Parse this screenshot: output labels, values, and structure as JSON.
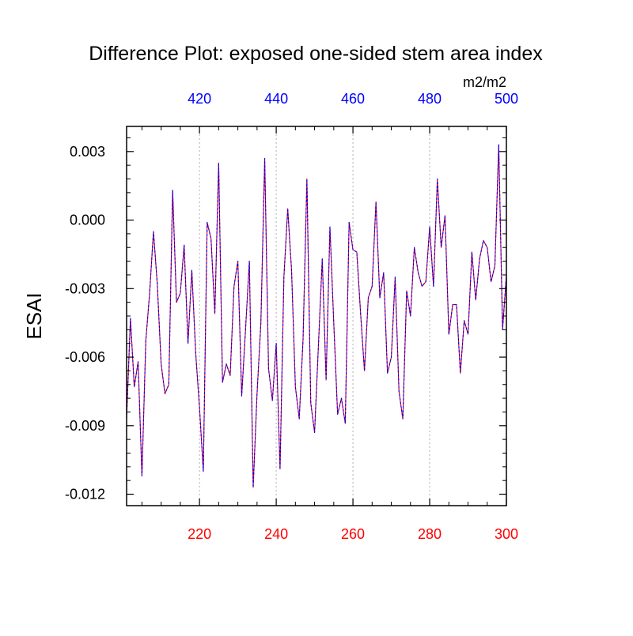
{
  "chart_data": {
    "type": "line",
    "title": "Difference Plot: exposed one-sided stem area index",
    "ylabel": "ESAI",
    "units_label": "m2/m2",
    "ylim": [
      -0.0125,
      0.0041
    ],
    "yticks": [
      {
        "value": 0.003,
        "label": "0.003"
      },
      {
        "value": 0.0,
        "label": "0.000"
      },
      {
        "value": -0.003,
        "label": "-0.003"
      },
      {
        "value": -0.006,
        "label": "-0.006"
      },
      {
        "value": -0.009,
        "label": "-0.009"
      },
      {
        "value": -0.012,
        "label": "-0.012"
      }
    ],
    "bottom_axis": {
      "xlim": [
        201,
        300
      ],
      "ticks": [
        {
          "value": 220,
          "label": "220"
        },
        {
          "value": 240,
          "label": "240"
        },
        {
          "value": 260,
          "label": "260"
        },
        {
          "value": 280,
          "label": "280"
        },
        {
          "value": 300,
          "label": "300"
        }
      ],
      "color": "#ff0000"
    },
    "top_axis": {
      "xlim": [
        401,
        500
      ],
      "ticks": [
        {
          "value": 420,
          "label": "420"
        },
        {
          "value": 440,
          "label": "440"
        },
        {
          "value": 460,
          "label": "460"
        },
        {
          "value": 480,
          "label": "480"
        },
        {
          "value": 500,
          "label": "500"
        }
      ],
      "color": "#0000ff"
    },
    "grid": "vertical-dashed",
    "x": [
      201,
      202,
      203,
      204,
      205,
      206,
      207,
      208,
      209,
      210,
      211,
      212,
      213,
      214,
      215,
      216,
      217,
      218,
      219,
      220,
      221,
      222,
      223,
      224,
      225,
      226,
      227,
      228,
      229,
      230,
      231,
      232,
      233,
      234,
      235,
      236,
      237,
      238,
      239,
      240,
      241,
      242,
      243,
      244,
      245,
      246,
      247,
      248,
      249,
      250,
      251,
      252,
      253,
      254,
      255,
      256,
      257,
      258,
      259,
      260,
      261,
      262,
      263,
      264,
      265,
      266,
      267,
      268,
      269,
      270,
      271,
      272,
      273,
      274,
      275,
      276,
      277,
      278,
      279,
      280,
      281,
      282,
      283,
      284,
      285,
      286,
      287,
      288,
      289,
      290,
      291,
      292,
      293,
      294,
      295,
      296,
      297,
      298,
      299,
      300
    ],
    "series": [
      {
        "name": "red",
        "color": "#ff0000",
        "values": [
          -0.0087,
          -0.0043,
          -0.0073,
          -0.0062,
          -0.0112,
          -0.0053,
          -0.0032,
          -0.0005,
          -0.0028,
          -0.0063,
          -0.0076,
          -0.0072,
          0.0013,
          -0.0036,
          -0.0032,
          -0.0011,
          -0.0054,
          -0.0022,
          -0.0058,
          -0.0082,
          -0.011,
          -0.0001,
          -0.0008,
          -0.0041,
          0.0025,
          -0.0071,
          -0.0063,
          -0.0068,
          -0.0029,
          -0.0018,
          -0.0077,
          -0.0048,
          -0.0018,
          -0.0117,
          -0.0076,
          -0.0045,
          0.0027,
          -0.0065,
          -0.0079,
          -0.0054,
          -0.0109,
          -0.0025,
          0.0005,
          -0.0022,
          -0.0073,
          -0.0087,
          -0.0052,
          0.0018,
          -0.008,
          -0.0093,
          -0.0055,
          -0.0017,
          -0.007,
          -0.0003,
          -0.0045,
          -0.0085,
          -0.0078,
          -0.0089,
          -0.0001,
          -0.0013,
          -0.0014,
          -0.0041,
          -0.0066,
          -0.0034,
          -0.0029,
          0.0008,
          -0.0034,
          -0.0023,
          -0.0067,
          -0.006,
          -0.0025,
          -0.0075,
          -0.0087,
          -0.0031,
          -0.0042,
          -0.0012,
          -0.0023,
          -0.0029,
          -0.0027,
          -0.0003,
          -0.0029,
          0.0018,
          -0.0012,
          0.0002,
          -0.005,
          -0.0037,
          -0.0037,
          -0.0067,
          -0.0044,
          -0.005,
          -0.0014,
          -0.0035,
          -0.0017,
          -0.0009,
          -0.0012,
          -0.0027,
          -0.002,
          0.0033,
          -0.0048,
          -0.0024
        ]
      },
      {
        "name": "blue",
        "color": "#0000ff",
        "values": [
          -0.0087,
          -0.0043,
          -0.0073,
          -0.0062,
          -0.0112,
          -0.0053,
          -0.0032,
          -0.0005,
          -0.0028,
          -0.0063,
          -0.0076,
          -0.0072,
          0.0013,
          -0.0036,
          -0.0032,
          -0.0011,
          -0.0054,
          -0.0022,
          -0.0058,
          -0.0082,
          -0.011,
          -0.0001,
          -0.0008,
          -0.0041,
          0.0025,
          -0.0071,
          -0.0063,
          -0.0068,
          -0.0029,
          -0.0018,
          -0.0077,
          -0.0048,
          -0.0018,
          -0.0117,
          -0.0076,
          -0.0045,
          0.0027,
          -0.0065,
          -0.0079,
          -0.0054,
          -0.0109,
          -0.0025,
          0.0005,
          -0.0022,
          -0.0073,
          -0.0087,
          -0.0052,
          0.0018,
          -0.008,
          -0.0093,
          -0.0055,
          -0.0017,
          -0.007,
          -0.0003,
          -0.0045,
          -0.0085,
          -0.0078,
          -0.0089,
          -0.0001,
          -0.0013,
          -0.0014,
          -0.0041,
          -0.0066,
          -0.0034,
          -0.0029,
          0.0008,
          -0.0034,
          -0.0023,
          -0.0067,
          -0.006,
          -0.0025,
          -0.0075,
          -0.0087,
          -0.0031,
          -0.0042,
          -0.0012,
          -0.0023,
          -0.0029,
          -0.0027,
          -0.0003,
          -0.0029,
          0.0018,
          -0.0012,
          0.0002,
          -0.005,
          -0.0037,
          -0.0037,
          -0.0067,
          -0.0044,
          -0.005,
          -0.0014,
          -0.0035,
          -0.0017,
          -0.0009,
          -0.0012,
          -0.0027,
          -0.002,
          0.0033,
          -0.0048,
          -0.0024
        ]
      }
    ]
  }
}
